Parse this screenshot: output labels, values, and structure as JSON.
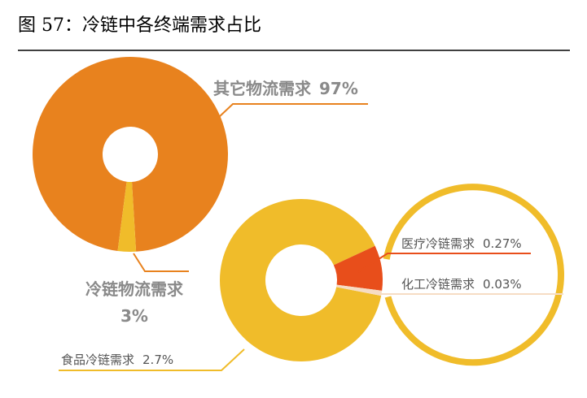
{
  "chart_data": [
    {
      "type": "donut",
      "title": "图 57：冷链中各终端需求占比",
      "categories": [
        "其它物流需求",
        "冷链物流需求"
      ],
      "values": [
        97,
        3
      ],
      "value_labels": [
        "97%",
        "3%"
      ],
      "colors": [
        "#E8821E",
        "#F0BC2A"
      ]
    },
    {
      "type": "donut",
      "categories": [
        "食品冷链需求",
        "医疗冷链需求",
        "化工冷链需求"
      ],
      "values": [
        2.7,
        0.27,
        0.03
      ],
      "value_labels": [
        "2.7%",
        "0.27%",
        "0.03%"
      ],
      "colors": [
        "#F0BC2A",
        "#E84E1B",
        "#F6DCC4"
      ]
    }
  ]
}
